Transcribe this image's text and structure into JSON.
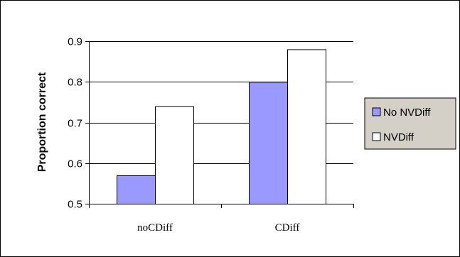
{
  "chart_data": {
    "type": "bar",
    "title": "",
    "xlabel": "",
    "ylabel": "Proportion correct",
    "categories": [
      "noCDiff",
      "CDiff"
    ],
    "series": [
      {
        "name": "No NVDiff",
        "values": [
          0.57,
          0.8
        ],
        "color": "#9999FF"
      },
      {
        "name": "NVDiff",
        "values": [
          0.74,
          0.88
        ],
        "color": "#FFFFFF"
      }
    ],
    "ylim": [
      0.5,
      0.9
    ],
    "yticks": [
      "0.5",
      "0.6",
      "0.7",
      "0.8",
      "0.9"
    ],
    "grid": true,
    "legend": "right"
  }
}
